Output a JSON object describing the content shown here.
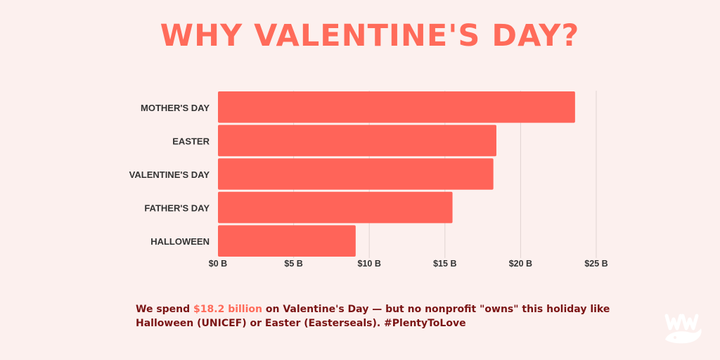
{
  "title": "WHY VALENTINE'S DAY?",
  "chart_data": {
    "type": "bar",
    "orientation": "horizontal",
    "categories": [
      "MOTHER'S DAY",
      "EASTER",
      "VALENTINE'S DAY",
      "FATHER'S DAY",
      "HALLOWEEN"
    ],
    "values": [
      23.6,
      18.4,
      18.2,
      15.5,
      9.1
    ],
    "unit": "billion USD",
    "xlim": [
      0,
      25
    ],
    "x_ticks": [
      0,
      5,
      10,
      15,
      20,
      25
    ],
    "x_tick_labels": [
      "$0 B",
      "$5 B",
      "$10 B",
      "$15 B",
      "$20 B",
      "$25 B"
    ],
    "grid": true,
    "bar_color": "#ff6459",
    "grid_color": "#e0d3d1"
  },
  "caption": {
    "part1": "We spend ",
    "highlight": "$18.2 billion",
    "part2": " on Valentine's Day — but no nonprofit \"owns\" this holiday like Halloween (UNICEF) or Easter (Easterseals).  #PlentyToLove"
  },
  "colors": {
    "background": "#fcf0ee",
    "title": "#ff6b5a",
    "caption_text": "#7a1414",
    "highlight": "#ff6b5a",
    "logo": "#ffffff"
  },
  "logo": {
    "icon": "whale-logo-icon"
  }
}
